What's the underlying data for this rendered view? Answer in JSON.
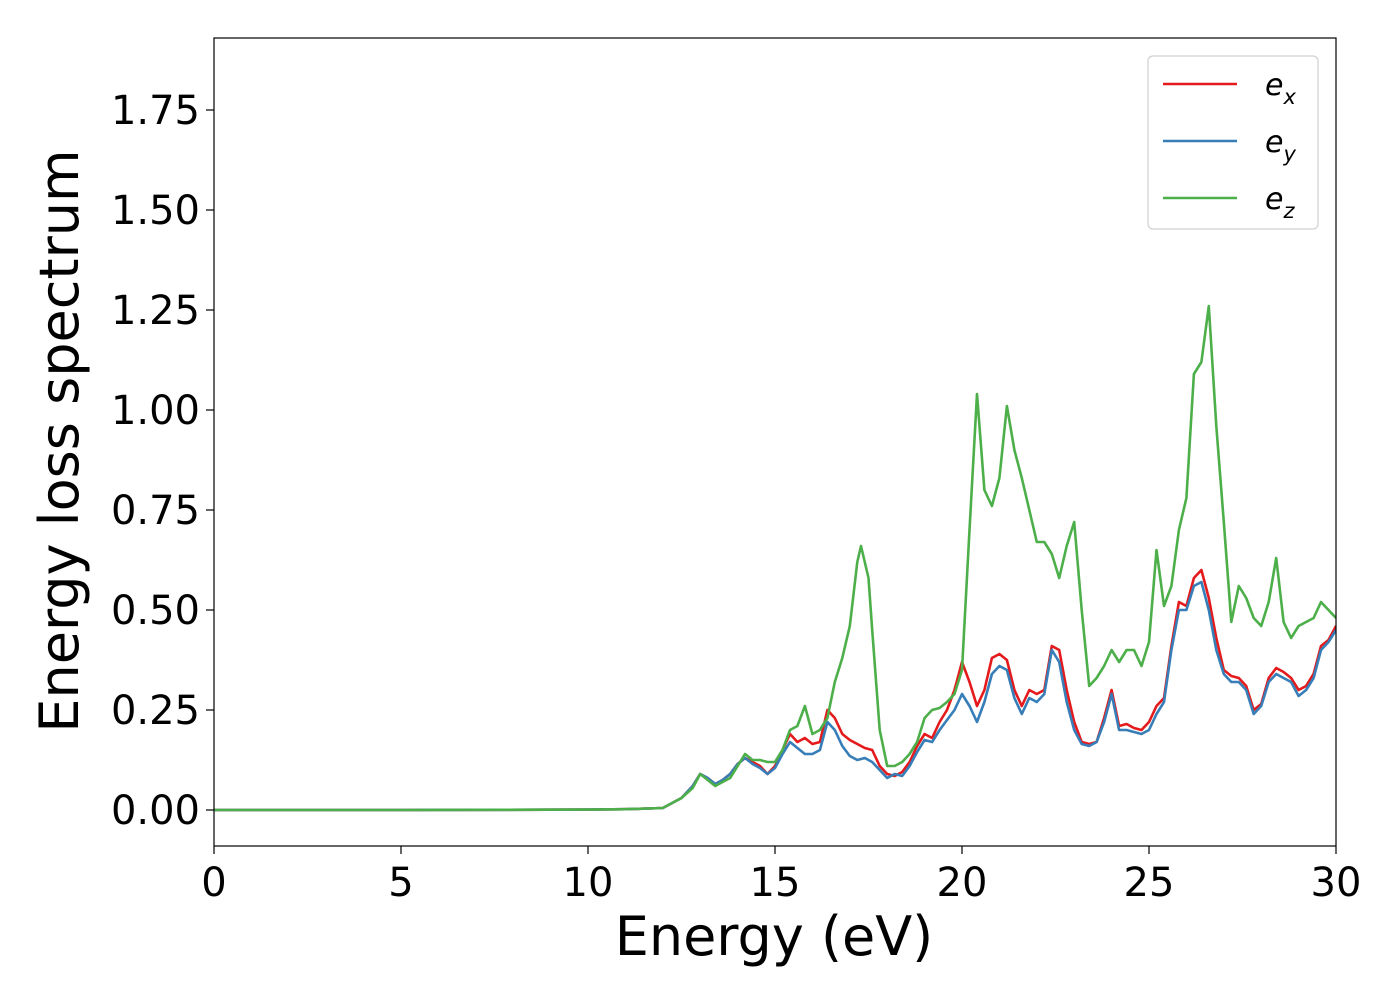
{
  "chart_data": {
    "type": "line",
    "title": "",
    "xlabel": "Energy (eV)",
    "ylabel": "Energy loss spectrum",
    "xlim": [
      0,
      30
    ],
    "ylim": [
      -0.09,
      1.93
    ],
    "xticks": [
      0,
      5,
      10,
      15,
      20,
      25,
      30
    ],
    "xtick_labels": [
      "0",
      "5",
      "10",
      "15",
      "20",
      "25",
      "30"
    ],
    "yticks": [
      0.0,
      0.25,
      0.5,
      0.75,
      1.0,
      1.25,
      1.5,
      1.75
    ],
    "ytick_labels": [
      "0.00",
      "0.25",
      "0.50",
      "0.75",
      "1.00",
      "1.25",
      "1.50",
      "1.75"
    ],
    "grid": false,
    "legend_position": "top-right",
    "series": [
      {
        "name": "e_x",
        "label_base": "e",
        "label_sub": "x",
        "color": "#e41a1c",
        "points": [
          [
            0,
            0
          ],
          [
            5,
            0
          ],
          [
            10,
            0.001
          ],
          [
            11,
            0.002
          ],
          [
            12,
            0.005
          ],
          [
            12.5,
            0.03
          ],
          [
            12.8,
            0.06
          ],
          [
            13.0,
            0.09
          ],
          [
            13.2,
            0.08
          ],
          [
            13.4,
            0.065
          ],
          [
            13.6,
            0.075
          ],
          [
            13.8,
            0.09
          ],
          [
            14.0,
            0.115
          ],
          [
            14.2,
            0.13
          ],
          [
            14.4,
            0.12
          ],
          [
            14.6,
            0.11
          ],
          [
            14.8,
            0.09
          ],
          [
            15.0,
            0.11
          ],
          [
            15.2,
            0.15
          ],
          [
            15.4,
            0.19
          ],
          [
            15.6,
            0.17
          ],
          [
            15.8,
            0.18
          ],
          [
            16.0,
            0.165
          ],
          [
            16.2,
            0.17
          ],
          [
            16.4,
            0.25
          ],
          [
            16.6,
            0.23
          ],
          [
            16.8,
            0.19
          ],
          [
            17.0,
            0.175
          ],
          [
            17.2,
            0.165
          ],
          [
            17.4,
            0.155
          ],
          [
            17.6,
            0.15
          ],
          [
            17.8,
            0.11
          ],
          [
            18.0,
            0.09
          ],
          [
            18.2,
            0.085
          ],
          [
            18.4,
            0.095
          ],
          [
            18.6,
            0.12
          ],
          [
            18.8,
            0.16
          ],
          [
            19.0,
            0.19
          ],
          [
            19.2,
            0.18
          ],
          [
            19.4,
            0.22
          ],
          [
            19.6,
            0.25
          ],
          [
            19.8,
            0.3
          ],
          [
            20.0,
            0.37
          ],
          [
            20.2,
            0.32
          ],
          [
            20.4,
            0.26
          ],
          [
            20.6,
            0.3
          ],
          [
            20.8,
            0.38
          ],
          [
            21.0,
            0.39
          ],
          [
            21.2,
            0.375
          ],
          [
            21.4,
            0.3
          ],
          [
            21.6,
            0.26
          ],
          [
            21.8,
            0.3
          ],
          [
            22.0,
            0.29
          ],
          [
            22.2,
            0.3
          ],
          [
            22.4,
            0.41
          ],
          [
            22.6,
            0.4
          ],
          [
            22.8,
            0.3
          ],
          [
            23.0,
            0.22
          ],
          [
            23.2,
            0.17
          ],
          [
            23.4,
            0.165
          ],
          [
            23.6,
            0.17
          ],
          [
            23.8,
            0.23
          ],
          [
            24.0,
            0.3
          ],
          [
            24.2,
            0.21
          ],
          [
            24.4,
            0.215
          ],
          [
            24.6,
            0.205
          ],
          [
            24.8,
            0.2
          ],
          [
            25.0,
            0.22
          ],
          [
            25.2,
            0.26
          ],
          [
            25.4,
            0.28
          ],
          [
            25.6,
            0.41
          ],
          [
            25.8,
            0.52
          ],
          [
            26.0,
            0.51
          ],
          [
            26.2,
            0.58
          ],
          [
            26.4,
            0.6
          ],
          [
            26.6,
            0.53
          ],
          [
            26.8,
            0.43
          ],
          [
            27.0,
            0.35
          ],
          [
            27.2,
            0.335
          ],
          [
            27.4,
            0.33
          ],
          [
            27.6,
            0.31
          ],
          [
            27.8,
            0.25
          ],
          [
            28.0,
            0.265
          ],
          [
            28.2,
            0.33
          ],
          [
            28.4,
            0.355
          ],
          [
            28.6,
            0.345
          ],
          [
            28.8,
            0.33
          ],
          [
            29.0,
            0.3
          ],
          [
            29.2,
            0.31
          ],
          [
            29.4,
            0.34
          ],
          [
            29.6,
            0.41
          ],
          [
            29.8,
            0.425
          ],
          [
            30.0,
            0.46
          ]
        ]
      },
      {
        "name": "e_y",
        "label_base": "e",
        "label_sub": "y",
        "color": "#377eb8",
        "points": [
          [
            0,
            0
          ],
          [
            5,
            0
          ],
          [
            10,
            0.001
          ],
          [
            11,
            0.002
          ],
          [
            12,
            0.005
          ],
          [
            12.5,
            0.03
          ],
          [
            12.8,
            0.06
          ],
          [
            13.0,
            0.09
          ],
          [
            13.2,
            0.08
          ],
          [
            13.4,
            0.065
          ],
          [
            13.6,
            0.075
          ],
          [
            13.8,
            0.09
          ],
          [
            14.0,
            0.115
          ],
          [
            14.2,
            0.13
          ],
          [
            14.4,
            0.115
          ],
          [
            14.6,
            0.105
          ],
          [
            14.8,
            0.09
          ],
          [
            15.0,
            0.105
          ],
          [
            15.2,
            0.14
          ],
          [
            15.4,
            0.17
          ],
          [
            15.6,
            0.155
          ],
          [
            15.8,
            0.14
          ],
          [
            16.0,
            0.14
          ],
          [
            16.2,
            0.15
          ],
          [
            16.4,
            0.22
          ],
          [
            16.6,
            0.2
          ],
          [
            16.8,
            0.16
          ],
          [
            17.0,
            0.135
          ],
          [
            17.2,
            0.125
          ],
          [
            17.4,
            0.13
          ],
          [
            17.6,
            0.12
          ],
          [
            17.8,
            0.1
          ],
          [
            18.0,
            0.08
          ],
          [
            18.2,
            0.09
          ],
          [
            18.4,
            0.085
          ],
          [
            18.6,
            0.11
          ],
          [
            18.8,
            0.145
          ],
          [
            19.0,
            0.175
          ],
          [
            19.2,
            0.17
          ],
          [
            19.4,
            0.2
          ],
          [
            19.6,
            0.225
          ],
          [
            19.8,
            0.25
          ],
          [
            20.0,
            0.29
          ],
          [
            20.2,
            0.26
          ],
          [
            20.4,
            0.22
          ],
          [
            20.6,
            0.27
          ],
          [
            20.8,
            0.34
          ],
          [
            21.0,
            0.36
          ],
          [
            21.2,
            0.35
          ],
          [
            21.4,
            0.28
          ],
          [
            21.6,
            0.24
          ],
          [
            21.8,
            0.28
          ],
          [
            22.0,
            0.27
          ],
          [
            22.2,
            0.29
          ],
          [
            22.4,
            0.4
          ],
          [
            22.6,
            0.37
          ],
          [
            22.8,
            0.27
          ],
          [
            23.0,
            0.2
          ],
          [
            23.2,
            0.165
          ],
          [
            23.4,
            0.16
          ],
          [
            23.6,
            0.17
          ],
          [
            23.8,
            0.22
          ],
          [
            24.0,
            0.29
          ],
          [
            24.2,
            0.2
          ],
          [
            24.4,
            0.2
          ],
          [
            24.6,
            0.195
          ],
          [
            24.8,
            0.19
          ],
          [
            25.0,
            0.2
          ],
          [
            25.2,
            0.24
          ],
          [
            25.4,
            0.27
          ],
          [
            25.6,
            0.4
          ],
          [
            25.8,
            0.5
          ],
          [
            26.0,
            0.5
          ],
          [
            26.2,
            0.56
          ],
          [
            26.4,
            0.57
          ],
          [
            26.6,
            0.5
          ],
          [
            26.8,
            0.4
          ],
          [
            27.0,
            0.34
          ],
          [
            27.2,
            0.32
          ],
          [
            27.4,
            0.32
          ],
          [
            27.6,
            0.3
          ],
          [
            27.8,
            0.24
          ],
          [
            28.0,
            0.26
          ],
          [
            28.2,
            0.32
          ],
          [
            28.4,
            0.34
          ],
          [
            28.6,
            0.33
          ],
          [
            28.8,
            0.32
          ],
          [
            29.0,
            0.285
          ],
          [
            29.2,
            0.3
          ],
          [
            29.4,
            0.33
          ],
          [
            29.6,
            0.4
          ],
          [
            29.8,
            0.42
          ],
          [
            30.0,
            0.45
          ]
        ]
      },
      {
        "name": "e_z",
        "label_base": "e",
        "label_sub": "z",
        "color": "#4daf4a",
        "points": [
          [
            0,
            0
          ],
          [
            5,
            0
          ],
          [
            10,
            0.001
          ],
          [
            11,
            0.002
          ],
          [
            12,
            0.005
          ],
          [
            12.5,
            0.03
          ],
          [
            12.8,
            0.055
          ],
          [
            13.0,
            0.09
          ],
          [
            13.2,
            0.075
          ],
          [
            13.4,
            0.06
          ],
          [
            13.6,
            0.07
          ],
          [
            13.8,
            0.08
          ],
          [
            14.0,
            0.11
          ],
          [
            14.2,
            0.14
          ],
          [
            14.4,
            0.125
          ],
          [
            14.6,
            0.125
          ],
          [
            14.8,
            0.12
          ],
          [
            15.0,
            0.12
          ],
          [
            15.2,
            0.15
          ],
          [
            15.4,
            0.2
          ],
          [
            15.6,
            0.21
          ],
          [
            15.8,
            0.26
          ],
          [
            16.0,
            0.19
          ],
          [
            16.2,
            0.2
          ],
          [
            16.4,
            0.23
          ],
          [
            16.6,
            0.32
          ],
          [
            16.8,
            0.38
          ],
          [
            17.0,
            0.46
          ],
          [
            17.2,
            0.62
          ],
          [
            17.3,
            0.66
          ],
          [
            17.5,
            0.58
          ],
          [
            17.6,
            0.45
          ],
          [
            17.8,
            0.2
          ],
          [
            18.0,
            0.11
          ],
          [
            18.2,
            0.11
          ],
          [
            18.4,
            0.12
          ],
          [
            18.6,
            0.14
          ],
          [
            18.8,
            0.17
          ],
          [
            19.0,
            0.23
          ],
          [
            19.2,
            0.25
          ],
          [
            19.4,
            0.255
          ],
          [
            19.6,
            0.27
          ],
          [
            19.8,
            0.29
          ],
          [
            20.0,
            0.35
          ],
          [
            20.2,
            0.7
          ],
          [
            20.4,
            1.04
          ],
          [
            20.6,
            0.8
          ],
          [
            20.8,
            0.76
          ],
          [
            21.0,
            0.83
          ],
          [
            21.2,
            1.01
          ],
          [
            21.4,
            0.9
          ],
          [
            21.6,
            0.83
          ],
          [
            21.8,
            0.75
          ],
          [
            22.0,
            0.67
          ],
          [
            22.2,
            0.67
          ],
          [
            22.4,
            0.64
          ],
          [
            22.6,
            0.58
          ],
          [
            22.8,
            0.66
          ],
          [
            23.0,
            0.72
          ],
          [
            23.2,
            0.5
          ],
          [
            23.4,
            0.31
          ],
          [
            23.6,
            0.33
          ],
          [
            23.8,
            0.36
          ],
          [
            24.0,
            0.4
          ],
          [
            24.2,
            0.37
          ],
          [
            24.4,
            0.4
          ],
          [
            24.6,
            0.4
          ],
          [
            24.8,
            0.36
          ],
          [
            25.0,
            0.42
          ],
          [
            25.2,
            0.65
          ],
          [
            25.4,
            0.51
          ],
          [
            25.6,
            0.56
          ],
          [
            25.8,
            0.7
          ],
          [
            26.0,
            0.78
          ],
          [
            26.2,
            1.09
          ],
          [
            26.4,
            1.12
          ],
          [
            26.6,
            1.26
          ],
          [
            26.8,
            0.96
          ],
          [
            27.0,
            0.72
          ],
          [
            27.2,
            0.47
          ],
          [
            27.4,
            0.56
          ],
          [
            27.6,
            0.53
          ],
          [
            27.8,
            0.48
          ],
          [
            28.0,
            0.46
          ],
          [
            28.2,
            0.52
          ],
          [
            28.4,
            0.63
          ],
          [
            28.6,
            0.47
          ],
          [
            28.8,
            0.43
          ],
          [
            29.0,
            0.46
          ],
          [
            29.2,
            0.47
          ],
          [
            29.4,
            0.48
          ],
          [
            29.6,
            0.52
          ],
          [
            29.8,
            0.5
          ],
          [
            30.0,
            0.48
          ]
        ]
      }
    ]
  }
}
